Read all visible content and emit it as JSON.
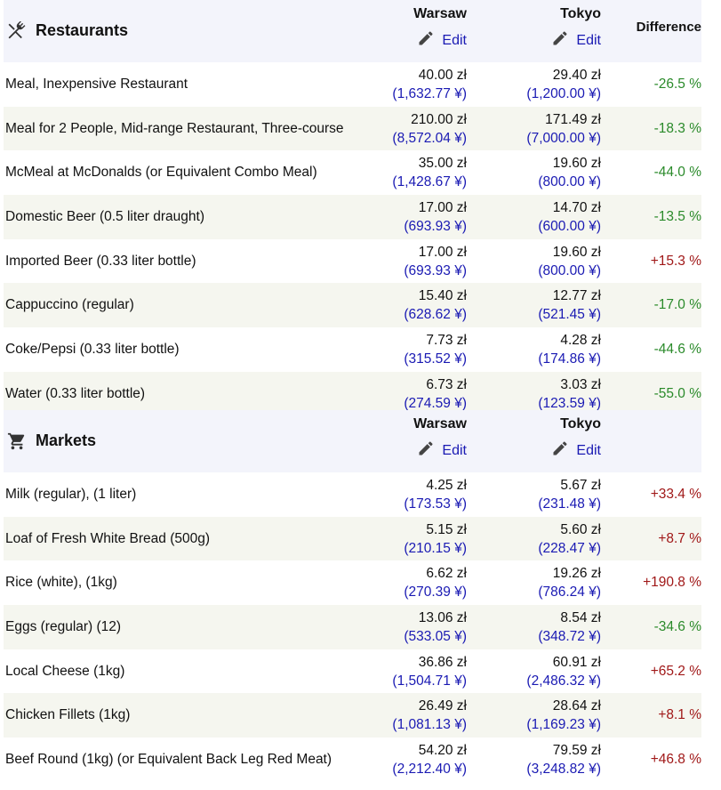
{
  "restaurants": {
    "title": "Restaurants",
    "icon": "fork-knife-icon",
    "city1": "Warsaw",
    "city2": "Tokyo",
    "edit_label": "Edit",
    "diff_label": "Difference",
    "rows": [
      {
        "item": "Meal, Inexpensive Restaurant",
        "w": "40.00 zł",
        "wc": "(1,632.77 ¥)",
        "t": "29.40 zł",
        "tc": "(1,200.00 ¥)",
        "d": "-26.5 %"
      },
      {
        "item": "Meal for 2 People, Mid-range Restaurant, Three-course",
        "w": "210.00 zł",
        "wc": "(8,572.04 ¥)",
        "t": "171.49 zł",
        "tc": "(7,000.00 ¥)",
        "d": "-18.3 %"
      },
      {
        "item": "McMeal at McDonalds (or Equivalent Combo Meal)",
        "w": "35.00 zł",
        "wc": "(1,428.67 ¥)",
        "t": "19.60 zł",
        "tc": "(800.00 ¥)",
        "d": "-44.0 %"
      },
      {
        "item": "Domestic Beer (0.5 liter draught)",
        "w": "17.00 zł",
        "wc": "(693.93 ¥)",
        "t": "14.70 zł",
        "tc": "(600.00 ¥)",
        "d": "-13.5 %"
      },
      {
        "item": "Imported Beer (0.33 liter bottle)",
        "w": "17.00 zł",
        "wc": "(693.93 ¥)",
        "t": "19.60 zł",
        "tc": "(800.00 ¥)",
        "d": "+15.3 %"
      },
      {
        "item": "Cappuccino (regular)",
        "w": "15.40 zł",
        "wc": "(628.62 ¥)",
        "t": "12.77 zł",
        "tc": "(521.45 ¥)",
        "d": "-17.0 %"
      },
      {
        "item": "Coke/Pepsi (0.33 liter bottle)",
        "w": "7.73 zł",
        "wc": "(315.52 ¥)",
        "t": "4.28 zł",
        "tc": "(174.86 ¥)",
        "d": "-44.6 %"
      },
      {
        "item": "Water (0.33 liter bottle)",
        "w": "6.73 zł",
        "wc": "(274.59 ¥)",
        "t": "3.03 zł",
        "tc": "(123.59 ¥)",
        "d": "-55.0 %"
      }
    ]
  },
  "markets": {
    "title": "Markets",
    "icon": "shopping-cart-icon",
    "city1": "Warsaw",
    "city2": "Tokyo",
    "edit_label": "Edit",
    "rows": [
      {
        "item": "Milk (regular), (1 liter)",
        "w": "4.25 zł",
        "wc": "(173.53 ¥)",
        "t": "5.67 zł",
        "tc": "(231.48 ¥)",
        "d": "+33.4 %"
      },
      {
        "item": "Loaf of Fresh White Bread (500g)",
        "w": "5.15 zł",
        "wc": "(210.15 ¥)",
        "t": "5.60 zł",
        "tc": "(228.47 ¥)",
        "d": "+8.7 %"
      },
      {
        "item": "Rice (white), (1kg)",
        "w": "6.62 zł",
        "wc": "(270.39 ¥)",
        "t": "19.26 zł",
        "tc": "(786.24 ¥)",
        "d": "+190.8 %"
      },
      {
        "item": "Eggs (regular) (12)",
        "w": "13.06 zł",
        "wc": "(533.05 ¥)",
        "t": "8.54 zł",
        "tc": "(348.72 ¥)",
        "d": "-34.6 %"
      },
      {
        "item": "Local Cheese (1kg)",
        "w": "36.86 zł",
        "wc": "(1,504.71 ¥)",
        "t": "60.91 zł",
        "tc": "(2,486.32 ¥)",
        "d": "+65.2 %"
      },
      {
        "item": "Chicken Fillets (1kg)",
        "w": "26.49 zł",
        "wc": "(1,081.13 ¥)",
        "t": "28.64 zł",
        "tc": "(1,169.23 ¥)",
        "d": "+8.1 %"
      },
      {
        "item": "Beef Round (1kg) (or Equivalent Back Leg Red Meat)",
        "w": "54.20 zł",
        "wc": "(2,212.40 ¥)",
        "t": "79.59 zł",
        "tc": "(3,248.82 ¥)",
        "d": "+46.8 %"
      }
    ]
  },
  "colors": {
    "header_bg": "#f3f4fb",
    "alt_row_bg": "#f5f6ef",
    "link": "#1a1ab3",
    "negative": "#2a8a2a",
    "positive": "#a01818"
  }
}
